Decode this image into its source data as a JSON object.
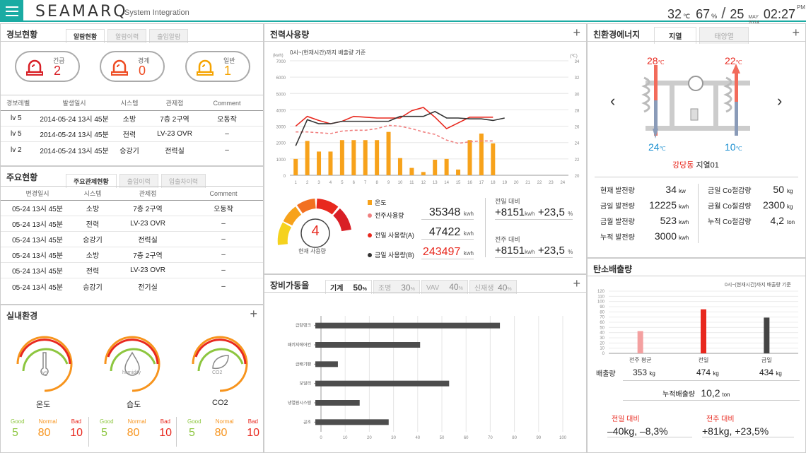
{
  "header": {
    "logo": "SEAMARQ",
    "subtitle": "System Integration",
    "temp": "32",
    "temp_unit": "℃",
    "humid": "67",
    "humid_unit": "%",
    "day": "25",
    "month": "MAY",
    "year": "2014",
    "time": "02:27",
    "ampm": "PM"
  },
  "alerts": {
    "title": "경보현황",
    "tabs": [
      "알람현황",
      "알람이력",
      "출입알람"
    ],
    "pills": [
      {
        "label": "긴급",
        "value": "2",
        "color": "#d81f26"
      },
      {
        "label": "경계",
        "value": "0",
        "color": "#ee4b22"
      },
      {
        "label": "일반",
        "value": "1",
        "color": "#f5a300"
      }
    ],
    "headers": [
      "경보레벨",
      "발생일시",
      "시스템",
      "관제점",
      "Comment"
    ],
    "rows": [
      [
        "lv 5",
        "2014-05-24 13시 45분",
        "소방",
        "7층 2구역",
        "오동작"
      ],
      [
        "lv 5",
        "2014-05-24 13시 45분",
        "전력",
        "LV-23 OVR",
        "–"
      ],
      [
        "lv 2",
        "2014-05-24 13시 45분",
        "승강기",
        "전력실",
        "–"
      ]
    ]
  },
  "main": {
    "title": "주요현황",
    "tabs": [
      "주요관제현황",
      "출입이력",
      "입출차이력"
    ],
    "headers": [
      "변경일시",
      "시스템",
      "관제점",
      "Comment"
    ],
    "rows": [
      [
        "05-24 13시 45분",
        "소방",
        "7층 2구역",
        "오동작"
      ],
      [
        "05-24 13시 45분",
        "전력",
        "LV-23 OVR",
        "–"
      ],
      [
        "05-24 13시 45분",
        "승강기",
        "전력실",
        "–"
      ],
      [
        "05-24 13시 45분",
        "소방",
        "7층 2구역",
        "–"
      ],
      [
        "05-24 13시 45분",
        "전력",
        "LV-23 OVR",
        "–"
      ],
      [
        "05-24 13시 45분",
        "승강기",
        "전기실",
        "–"
      ]
    ]
  },
  "indoor": {
    "title": "실내환경",
    "plus": "+",
    "gauges": [
      {
        "label": "온도",
        "icon": "℃",
        "good": "5",
        "normal": "80",
        "bad": "10"
      },
      {
        "label": "습도",
        "icon": "humidity",
        "good": "5",
        "normal": "80",
        "bad": "10"
      },
      {
        "label": "CO2",
        "icon": "CO2",
        "good": "5",
        "normal": "80",
        "bad": "10"
      }
    ],
    "good_label": "Good",
    "normal_label": "Normal",
    "bad_label": "Bad",
    "colors": {
      "good": "#8dc63f",
      "normal": "#f7941d",
      "bad": "#e8281e"
    }
  },
  "power": {
    "title": "전력사용량",
    "plus": "+",
    "note": "0시~(현재시간)까지 배출량 기준",
    "ylabel_left": "(kwh)",
    "ylabel_right": "(℃)",
    "gauge_value": "4",
    "gauge_label": "현재 사용량",
    "legend": [
      {
        "label": "온도",
        "value": "",
        "unit": ""
      },
      {
        "label": "전주사용량",
        "value": "35348",
        "unit": "kwh"
      },
      {
        "label": "전일 사용량(A)",
        "value": "47422",
        "unit": "kwh"
      },
      {
        "label": "금일 사용량(B)",
        "value": "243497",
        "unit": "kwh"
      }
    ],
    "cmp": [
      {
        "label": "전일 대비",
        "value": "+8151",
        "unit": "kwh",
        "pct": "+23,5",
        "pct_unit": "%"
      },
      {
        "label": "전주 대비",
        "value": "+8151",
        "unit": "kwh",
        "pct": "+23,5",
        "pct_unit": "%"
      }
    ],
    "colors": {
      "bar": "#f7a21b",
      "prev_week": "#f08080",
      "prev_day": "#e8281e",
      "today": "#333333"
    }
  },
  "equip": {
    "title": "장비가동율",
    "plus": "+",
    "tabs": [
      {
        "label": "기계",
        "pct": "50",
        "unit": "%"
      },
      {
        "label": "조명",
        "pct": "30",
        "unit": "%"
      },
      {
        "label": "VAV",
        "pct": "40",
        "unit": "%"
      },
      {
        "label": "신재생",
        "pct": "40",
        "unit": "%"
      }
    ]
  },
  "eco": {
    "title": "친환경에너지",
    "plus": "+",
    "tabs": [
      "지열",
      "태양열"
    ],
    "temp_hot_left": "28",
    "temp_hot_right": "22",
    "temp_cold_left": "24",
    "temp_cold_right": "10",
    "temp_unit": "℃",
    "site": "강당동",
    "site_sub": "지열01",
    "left": [
      {
        "label": "현재 발전량",
        "value": "34",
        "unit": "kw"
      },
      {
        "label": "금일 발전량",
        "value": "12225",
        "unit": "kwh"
      },
      {
        "label": "금월 발전량",
        "value": "523",
        "unit": "kwh"
      },
      {
        "label": "누적 발전량",
        "value": "3000",
        "unit": "kwh"
      }
    ],
    "right": [
      {
        "label": "금일 Co절감량",
        "value": "50",
        "unit": "kg"
      },
      {
        "label": "금월 Co절감량",
        "value": "2300",
        "unit": "kg"
      },
      {
        "label": "누적 Co절감량",
        "value": "4,2",
        "unit": "ton"
      }
    ]
  },
  "carbon": {
    "title": "탄소배출량",
    "note": "0시~(현재시간)까지 배출량 기준",
    "row_label": "배출량",
    "cum_label": "누적배출량",
    "cum_value": "10,2",
    "cum_unit": "ton",
    "cmp": [
      {
        "label": "전일 대비",
        "value": "–40kg, –8,3%"
      },
      {
        "label": "전주 대비",
        "value": "+81kg, +23,5%"
      }
    ],
    "items": [
      {
        "label": "전주 평균",
        "value": "353",
        "unit": "kg"
      },
      {
        "label": "전일",
        "value": "474",
        "unit": "kg"
      },
      {
        "label": "금일",
        "value": "434",
        "unit": "kg"
      }
    ]
  },
  "chart_data": [
    {
      "type": "bar",
      "title": "",
      "categories": [
        "1",
        "2",
        "3",
        "4",
        "5",
        "6",
        "7",
        "8",
        "9",
        "10",
        "11",
        "12",
        "13",
        "14",
        "15",
        "16",
        "17",
        "18",
        "19",
        "20",
        "21",
        "22",
        "23",
        "24"
      ],
      "ylim": [
        0,
        7000
      ],
      "y2lim": [
        20,
        34
      ],
      "yticks": [
        0,
        1000,
        2000,
        3000,
        4000,
        5000,
        6000,
        7000
      ],
      "y2ticks": [
        20,
        22,
        24,
        26,
        28,
        30,
        32,
        34
      ],
      "series": [
        {
          "name": "온도",
          "type": "bar",
          "values": [
            1000,
            2100,
            1450,
            1450,
            2150,
            2150,
            2150,
            2150,
            2650,
            1050,
            450,
            200,
            950,
            1000,
            350,
            2150,
            2550,
            1950,
            null,
            null,
            null,
            null,
            null,
            null
          ]
        },
        {
          "name": "전주사용량",
          "type": "line",
          "values": [
            2650,
            2650,
            2600,
            2550,
            2700,
            2750,
            2750,
            2850,
            3050,
            3000,
            2850,
            2650,
            2500,
            2150,
            1950,
            2050,
            2100,
            2100,
            null,
            null,
            null,
            null,
            null,
            null
          ]
        },
        {
          "name": "전일 사용량(A)",
          "type": "line",
          "values": [
            3000,
            3600,
            3350,
            3150,
            3300,
            3600,
            3550,
            3500,
            3500,
            3500,
            3950,
            4150,
            3550,
            2850,
            3200,
            3550,
            3550,
            3550,
            null,
            null,
            null,
            null,
            null,
            null
          ]
        },
        {
          "name": "금일 사용량(B)",
          "type": "line",
          "values": [
            1800,
            3400,
            3150,
            3150,
            3300,
            3300,
            3300,
            3300,
            3300,
            3600,
            3600,
            3600,
            3900,
            3500,
            3500,
            3450,
            3450,
            3350,
            3500,
            null,
            null,
            null,
            null,
            null
          ]
        }
      ]
    },
    {
      "type": "bar",
      "orientation": "horizontal",
      "title": "",
      "categories": [
        "급탕탱크",
        "패키지에어컨",
        "급배기팬",
        "보일러",
        "냉열원시스템",
        "공조"
      ],
      "values": [
        74,
        41,
        7,
        53,
        16,
        28
      ],
      "xlim": [
        0,
        100
      ],
      "xticks": [
        0,
        10,
        20,
        30,
        40,
        50,
        60,
        70,
        80,
        90,
        100
      ]
    },
    {
      "type": "bar",
      "title": "",
      "categories": [
        "전주 평균",
        "전일",
        "금일"
      ],
      "values": [
        43,
        85,
        69
      ],
      "ylim": [
        0,
        120
      ],
      "yticks": [
        0,
        10,
        20,
        30,
        40,
        50,
        60,
        70,
        80,
        90,
        100,
        110,
        120
      ],
      "colors": [
        "#f4a0a0",
        "#e8281e",
        "#444444"
      ]
    }
  ]
}
